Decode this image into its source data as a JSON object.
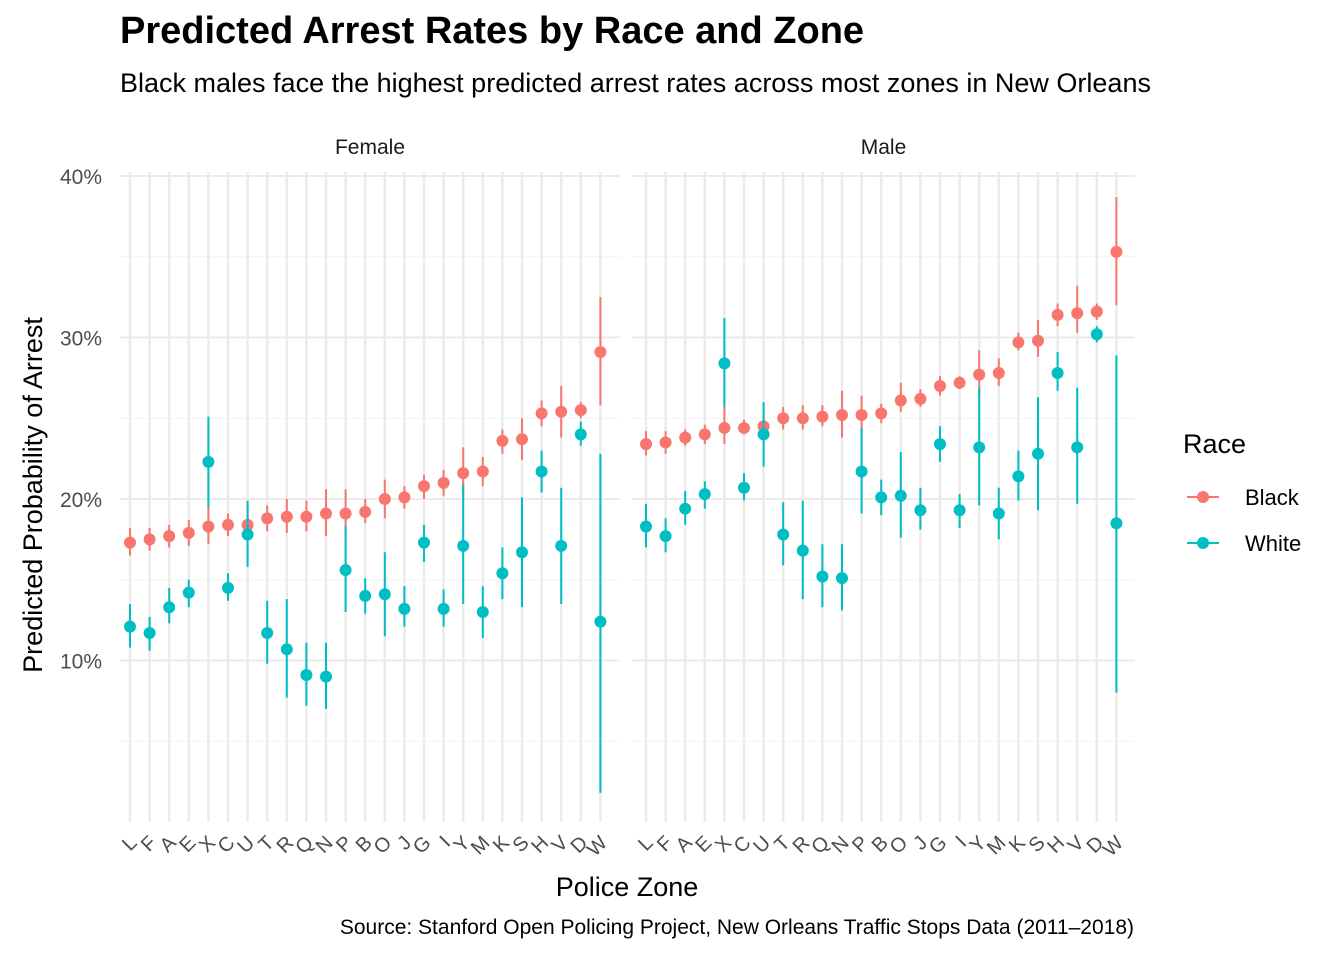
{
  "title": "Predicted Arrest Rates by Race and Zone",
  "subtitle": "Black males face the highest predicted arrest rates across most zones in New Orleans",
  "caption": "Source: Stanford Open Policing Project, New Orleans Traffic Stops Data (2011–2018)",
  "chart_data": {
    "type": "scatter",
    "title": "Predicted Arrest Rates by Race and Zone",
    "xlabel": "Police Zone",
    "ylabel": "Predicted Probability of Arrest",
    "ylim": [
      0.0,
      0.4
    ],
    "yticks": [
      0.1,
      0.2,
      0.3,
      0.4
    ],
    "ytick_labels": [
      "10%",
      "20%",
      "30%",
      "40%"
    ],
    "grid": true,
    "legend": {
      "title": "Race",
      "position": "right",
      "entries": [
        "Black",
        "White"
      ]
    },
    "colors": {
      "Black": "#F8766D",
      "White": "#00BFC4"
    },
    "panels": [
      {
        "name": "Female",
        "categories": [
          "L",
          "F",
          "A",
          "E",
          "X",
          "C",
          "U",
          "T",
          "R",
          "Q",
          "N",
          "P",
          "B",
          "O",
          "J",
          "G",
          "I",
          "Y",
          "M",
          "K",
          "S",
          "H",
          "V",
          "D",
          "W"
        ],
        "series": [
          {
            "name": "Black",
            "values": [
              0.173,
              0.175,
              0.177,
              0.179,
              0.183,
              0.184,
              0.184,
              0.188,
              0.189,
              0.189,
              0.191,
              0.191,
              0.192,
              0.2,
              0.201,
              0.208,
              0.21,
              0.216,
              0.217,
              0.236,
              0.237,
              0.253,
              0.254,
              0.255,
              0.291
            ],
            "lower": [
              0.165,
              0.168,
              0.17,
              0.171,
              0.172,
              0.177,
              0.177,
              0.18,
              0.179,
              0.18,
              0.177,
              0.178,
              0.185,
              0.188,
              0.194,
              0.2,
              0.202,
              0.2,
              0.208,
              0.228,
              0.224,
              0.245,
              0.238,
              0.25,
              0.258
            ],
            "upper": [
              0.182,
              0.182,
              0.184,
              0.187,
              0.196,
              0.191,
              0.193,
              0.196,
              0.2,
              0.199,
              0.206,
              0.206,
              0.2,
              0.212,
              0.208,
              0.215,
              0.218,
              0.232,
              0.226,
              0.243,
              0.25,
              0.261,
              0.27,
              0.26,
              0.325
            ]
          },
          {
            "name": "White",
            "values": [
              0.121,
              0.117,
              0.133,
              0.142,
              0.223,
              0.145,
              0.178,
              0.117,
              0.107,
              0.091,
              0.09,
              0.156,
              0.14,
              0.141,
              0.132,
              0.173,
              0.132,
              0.171,
              0.13,
              0.154,
              0.167,
              0.217,
              0.171,
              0.24,
              0.124
            ],
            "lower": [
              0.108,
              0.106,
              0.123,
              0.133,
              0.195,
              0.137,
              0.158,
              0.098,
              0.077,
              0.072,
              0.07,
              0.13,
              0.129,
              0.115,
              0.121,
              0.161,
              0.121,
              0.135,
              0.114,
              0.138,
              0.133,
              0.204,
              0.135,
              0.233,
              0.018
            ],
            "upper": [
              0.135,
              0.127,
              0.145,
              0.15,
              0.251,
              0.154,
              0.199,
              0.137,
              0.138,
              0.111,
              0.111,
              0.183,
              0.151,
              0.167,
              0.146,
              0.184,
              0.144,
              0.209,
              0.146,
              0.17,
              0.201,
              0.23,
              0.207,
              0.248,
              0.228
            ]
          }
        ]
      },
      {
        "name": "Male",
        "categories": [
          "L",
          "F",
          "A",
          "E",
          "X",
          "C",
          "U",
          "T",
          "R",
          "Q",
          "N",
          "P",
          "B",
          "O",
          "J",
          "G",
          "I",
          "Y",
          "M",
          "K",
          "S",
          "H",
          "V",
          "D",
          "W"
        ],
        "series": [
          {
            "name": "Black",
            "values": [
              0.234,
              0.235,
              0.238,
              0.24,
              0.244,
              0.244,
              0.245,
              0.25,
              0.25,
              0.251,
              0.252,
              0.252,
              0.253,
              0.261,
              0.262,
              0.27,
              0.272,
              0.277,
              0.278,
              0.297,
              0.298,
              0.314,
              0.315,
              0.316,
              0.353
            ],
            "lower": [
              0.227,
              0.228,
              0.233,
              0.234,
              0.234,
              0.24,
              0.24,
              0.243,
              0.243,
              0.245,
              0.238,
              0.24,
              0.247,
              0.254,
              0.257,
              0.264,
              0.268,
              0.263,
              0.27,
              0.292,
              0.288,
              0.307,
              0.303,
              0.311,
              0.32
            ],
            "upper": [
              0.242,
              0.242,
              0.243,
              0.246,
              0.257,
              0.249,
              0.25,
              0.257,
              0.258,
              0.258,
              0.267,
              0.264,
              0.259,
              0.272,
              0.268,
              0.276,
              0.276,
              0.292,
              0.287,
              0.303,
              0.311,
              0.321,
              0.332,
              0.321,
              0.387
            ]
          },
          {
            "name": "White",
            "values": [
              0.183,
              0.177,
              0.194,
              0.203,
              0.284,
              0.207,
              0.24,
              0.178,
              0.168,
              0.152,
              0.151,
              0.217,
              0.201,
              0.202,
              0.193,
              0.234,
              0.193,
              0.232,
              0.191,
              0.214,
              0.228,
              0.278,
              0.232,
              0.302,
              0.185
            ],
            "lower": [
              0.17,
              0.167,
              0.184,
              0.194,
              0.257,
              0.199,
              0.22,
              0.159,
              0.138,
              0.133,
              0.131,
              0.191,
              0.19,
              0.176,
              0.181,
              0.223,
              0.182,
              0.196,
              0.175,
              0.199,
              0.193,
              0.267,
              0.197,
              0.297,
              0.08
            ],
            "upper": [
              0.197,
              0.188,
              0.205,
              0.211,
              0.312,
              0.216,
              0.26,
              0.198,
              0.199,
              0.172,
              0.172,
              0.244,
              0.212,
              0.229,
              0.207,
              0.245,
              0.203,
              0.269,
              0.207,
              0.23,
              0.263,
              0.291,
              0.269,
              0.307,
              0.289
            ]
          }
        ]
      }
    ]
  }
}
